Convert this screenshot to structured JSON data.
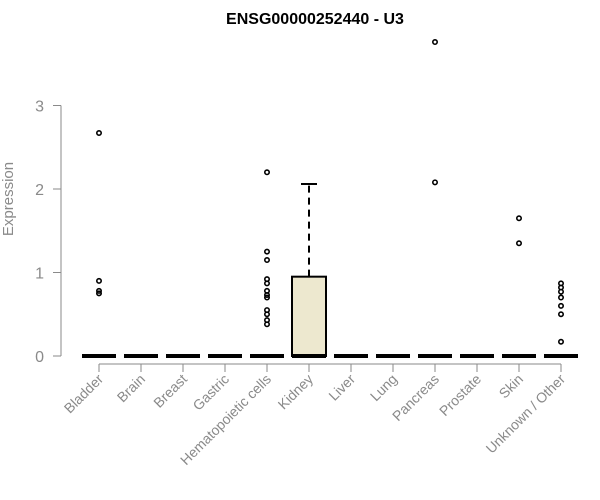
{
  "chart_data": {
    "type": "box",
    "title": "ENSG00000252440 - U3",
    "ylabel": "Expression",
    "xlabel": "",
    "ylim": [
      0,
      3.8
    ],
    "yticks": [
      0,
      1,
      2,
      3
    ],
    "grid": false,
    "colors": {
      "box_fill": "#ede8cf",
      "axis_text": "#8a8a8a"
    },
    "categories": [
      "Bladder",
      "Brain",
      "Breast",
      "Gastric",
      "Hematopoietic cells",
      "Kidney",
      "Liver",
      "Lung",
      "Pancreas",
      "Prostate",
      "Skin",
      "Unknown / Other"
    ],
    "boxes": [
      {
        "median": 0,
        "q1": 0,
        "q3": 0,
        "whisker_low": 0,
        "whisker_high": 0,
        "outliers": [
          0.75,
          0.78,
          0.9,
          2.67
        ]
      },
      {
        "median": 0,
        "q1": 0,
        "q3": 0,
        "whisker_low": 0,
        "whisker_high": 0,
        "outliers": []
      },
      {
        "median": 0,
        "q1": 0,
        "q3": 0,
        "whisker_low": 0,
        "whisker_high": 0,
        "outliers": []
      },
      {
        "median": 0,
        "q1": 0,
        "q3": 0,
        "whisker_low": 0,
        "whisker_high": 0,
        "outliers": []
      },
      {
        "median": 0,
        "q1": 0,
        "q3": 0,
        "whisker_low": 0,
        "whisker_high": 0,
        "outliers": [
          0.38,
          0.43,
          0.5,
          0.55,
          0.7,
          0.73,
          0.78,
          0.87,
          0.92,
          1.15,
          1.25,
          2.2
        ]
      },
      {
        "median": 0,
        "q1": 0,
        "q3": 0.95,
        "whisker_low": 0,
        "whisker_high": 2.06,
        "outliers": []
      },
      {
        "median": 0,
        "q1": 0,
        "q3": 0,
        "whisker_low": 0,
        "whisker_high": 0,
        "outliers": []
      },
      {
        "median": 0,
        "q1": 0,
        "q3": 0,
        "whisker_low": 0,
        "whisker_high": 0,
        "outliers": []
      },
      {
        "median": 0,
        "q1": 0,
        "q3": 0,
        "whisker_low": 0,
        "whisker_high": 0,
        "outliers": [
          2.08,
          3.76
        ]
      },
      {
        "median": 0,
        "q1": 0,
        "q3": 0,
        "whisker_low": 0,
        "whisker_high": 0,
        "outliers": []
      },
      {
        "median": 0,
        "q1": 0,
        "q3": 0,
        "whisker_low": 0,
        "whisker_high": 0,
        "outliers": [
          1.35,
          1.65
        ]
      },
      {
        "median": 0,
        "q1": 0,
        "q3": 0,
        "whisker_low": 0,
        "whisker_high": 0,
        "outliers": [
          0.17,
          0.5,
          0.6,
          0.7,
          0.77,
          0.82,
          0.87
        ]
      }
    ]
  }
}
